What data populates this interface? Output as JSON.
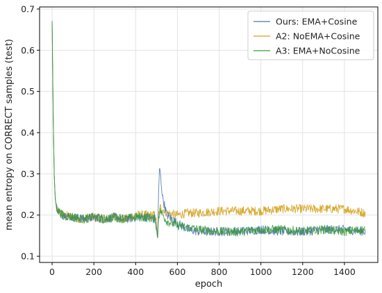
{
  "chart_data": {
    "type": "line",
    "title": "",
    "xlabel": "epoch",
    "ylabel": "mean entropy on CORRECT samples (test)",
    "xlim": [
      -60,
      1560
    ],
    "ylim": [
      0.085,
      0.705
    ],
    "xticks": [
      0,
      200,
      400,
      600,
      800,
      1000,
      1200,
      1400
    ],
    "yticks": [
      0.1,
      0.2,
      0.3,
      0.4,
      0.5,
      0.6,
      0.7
    ],
    "xtick_labels": [
      "0",
      "200",
      "400",
      "600",
      "800",
      "1000",
      "1200",
      "1400"
    ],
    "ytick_labels": [
      "0.1",
      "0.2",
      "0.3",
      "0.4",
      "0.5",
      "0.6",
      "0.7"
    ],
    "grid": true,
    "legend_position": "top-right",
    "series": [
      {
        "name": "Ours: EMA+Cosine",
        "color": "#4c72b0",
        "x": [
          0,
          5,
          10,
          15,
          20,
          30,
          50,
          100,
          150,
          200,
          250,
          300,
          350,
          400,
          450,
          495,
          505,
          510,
          515,
          520,
          530,
          550,
          600,
          650,
          700,
          800,
          900,
          1000,
          1100,
          1200,
          1300,
          1400,
          1500
        ],
        "y": [
          0.67,
          0.45,
          0.3,
          0.24,
          0.22,
          0.21,
          0.2,
          0.195,
          0.19,
          0.195,
          0.19,
          0.195,
          0.19,
          0.195,
          0.195,
          0.19,
          0.14,
          0.25,
          0.32,
          0.29,
          0.24,
          0.2,
          0.18,
          0.165,
          0.16,
          0.16,
          0.16,
          0.165,
          0.16,
          0.16,
          0.165,
          0.165,
          0.16
        ]
      },
      {
        "name": "A2: NoEMA+Cosine",
        "color": "#d4a017",
        "x": [
          0,
          5,
          10,
          15,
          20,
          30,
          50,
          100,
          150,
          200,
          250,
          300,
          350,
          400,
          450,
          495,
          505,
          510,
          520,
          530,
          550,
          600,
          650,
          700,
          800,
          900,
          1000,
          1100,
          1200,
          1300,
          1400,
          1500
        ],
        "y": [
          0.67,
          0.45,
          0.3,
          0.24,
          0.22,
          0.21,
          0.2,
          0.195,
          0.19,
          0.195,
          0.19,
          0.195,
          0.19,
          0.2,
          0.2,
          0.2,
          0.15,
          0.2,
          0.22,
          0.215,
          0.205,
          0.2,
          0.205,
          0.205,
          0.21,
          0.21,
          0.21,
          0.215,
          0.215,
          0.215,
          0.215,
          0.205
        ]
      },
      {
        "name": "A3: EMA+NoCosine",
        "color": "#3a9a3a",
        "x": [
          0,
          5,
          10,
          15,
          20,
          30,
          50,
          100,
          150,
          200,
          250,
          300,
          350,
          400,
          450,
          495,
          505,
          510,
          520,
          530,
          550,
          600,
          650,
          700,
          800,
          900,
          1000,
          1100,
          1200,
          1300,
          1400,
          1500
        ],
        "y": [
          0.67,
          0.45,
          0.3,
          0.24,
          0.22,
          0.21,
          0.2,
          0.195,
          0.19,
          0.195,
          0.19,
          0.195,
          0.19,
          0.195,
          0.195,
          0.19,
          0.14,
          0.2,
          0.21,
          0.2,
          0.185,
          0.175,
          0.17,
          0.165,
          0.16,
          0.16,
          0.165,
          0.165,
          0.16,
          0.165,
          0.16,
          0.165
        ]
      }
    ]
  }
}
